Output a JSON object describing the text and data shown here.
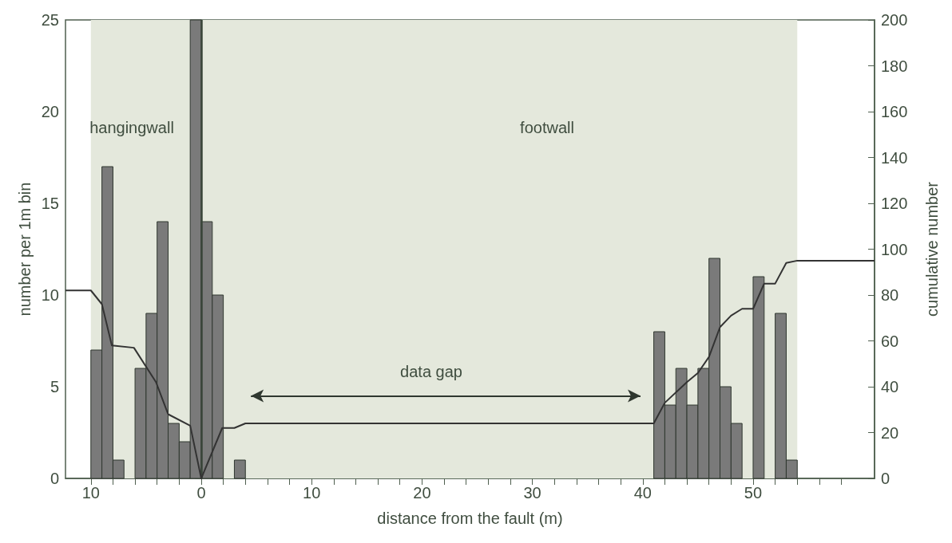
{
  "chart_data": {
    "type": "histogram",
    "xlabel": "distance from the fault (m)",
    "ylabel": "number per 1m bin",
    "y2label": "cumulative number",
    "bins": [
      -10,
      -9,
      -8,
      -7,
      -6,
      -5,
      -4,
      -3,
      -2,
      -1,
      0,
      1,
      2,
      3,
      4,
      5,
      6,
      7,
      8,
      9,
      10,
      11,
      12,
      13,
      14,
      15,
      16,
      17,
      18,
      19,
      20,
      21,
      22,
      23,
      24,
      25,
      26,
      27,
      28,
      29,
      30,
      31,
      32,
      33,
      34,
      35,
      36,
      37,
      38,
      39,
      40,
      41,
      42,
      43,
      44,
      45,
      46,
      47,
      48,
      49,
      50,
      51,
      52,
      53,
      54
    ],
    "values": [
      7,
      17,
      1,
      0,
      6,
      9,
      14,
      3,
      2,
      25,
      14,
      10,
      0,
      1,
      0,
      0,
      0,
      0,
      0,
      0,
      0,
      0,
      0,
      0,
      0,
      0,
      0,
      0,
      0,
      0,
      0,
      0,
      0,
      0,
      0,
      0,
      0,
      0,
      0,
      0,
      0,
      0,
      0,
      0,
      0,
      0,
      0,
      0,
      0,
      0,
      0,
      8,
      4,
      6,
      4,
      6,
      12,
      5,
      3,
      0,
      11,
      0,
      9,
      1
    ],
    "color": "#7a7a7a",
    "series": [
      {
        "type": "line",
        "axis": "y2",
        "color": "#333333",
        "x": [
          -12.3,
          -10,
          -9,
          -8.1,
          -6.1,
          -4.1,
          -3,
          -1,
          0,
          1.9,
          3,
          4,
          41,
          42,
          44,
          45,
          46,
          47,
          48,
          49,
          50,
          51,
          52,
          53,
          54,
          61
        ],
        "values": [
          82,
          82,
          76,
          58,
          57,
          42,
          28,
          23,
          0,
          22,
          22,
          24,
          24,
          33,
          42,
          46,
          53,
          66,
          71,
          74,
          74,
          85,
          85,
          94,
          95,
          95
        ]
      }
    ],
    "xlim": [
      -12.3,
      61
    ],
    "xticks": [
      {
        "value": -10,
        "label": "10"
      },
      {
        "value": -8,
        "label": null
      },
      {
        "value": -6,
        "label": null
      },
      {
        "value": -4,
        "label": null
      },
      {
        "value": -2,
        "label": null
      },
      0,
      {
        "value": 2,
        "label": null
      },
      {
        "value": 4,
        "label": null
      },
      {
        "value": 6,
        "label": null
      },
      {
        "value": 8,
        "label": null
      },
      10,
      {
        "value": 12,
        "label": null
      },
      {
        "value": 14,
        "label": null
      },
      {
        "value": 16,
        "label": null
      },
      {
        "value": 18,
        "label": null
      },
      20,
      {
        "value": 22,
        "label": null
      },
      {
        "value": 24,
        "label": null
      },
      {
        "value": 26,
        "label": null
      },
      {
        "value": 28,
        "label": null
      },
      30,
      {
        "value": 32,
        "label": null
      },
      {
        "value": 34,
        "label": null
      },
      {
        "value": 36,
        "label": null
      },
      {
        "value": 38,
        "label": null
      },
      40,
      {
        "value": 42,
        "label": null
      },
      {
        "value": 44,
        "label": null
      },
      {
        "value": 46,
        "label": null
      },
      {
        "value": 48,
        "label": null
      },
      50,
      {
        "value": 52,
        "label": null
      },
      {
        "value": 54,
        "label": null
      },
      {
        "value": 56,
        "label": null
      },
      {
        "value": 58,
        "label": null
      }
    ],
    "ylim": [
      0,
      25
    ],
    "yticks": [
      0,
      5,
      10,
      15,
      20,
      25
    ],
    "y2lim": [
      0,
      200
    ],
    "y2ticks": [
      0,
      20,
      40,
      60,
      80,
      100,
      120,
      140,
      160,
      180,
      200
    ],
    "bands": [
      {
        "axis": "x",
        "from": -10,
        "to": 54,
        "color": "#e4e8dc"
      }
    ],
    "ref_lines": [
      {
        "axis": "x",
        "value": 0,
        "color": "#3a463a"
      }
    ],
    "annotations": [
      "hangingwall",
      "footwall",
      "data gap"
    ]
  }
}
